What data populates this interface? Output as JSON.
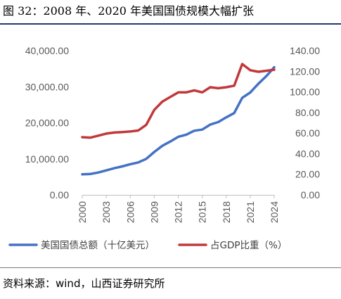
{
  "title": "图 32：2008 年、2020 年美国国债规模大幅扩张",
  "source": "资料来源：wind，山西证券研究所",
  "chart_data": {
    "type": "line",
    "title": "",
    "xlabel": "",
    "ylabel": "",
    "x_ticks": [
      "2000",
      "2003",
      "2006",
      "2009",
      "2012",
      "2015",
      "2018",
      "2021",
      "2024"
    ],
    "y_left_ticks": [
      "0.00",
      "10,000.00",
      "20,000.00",
      "30,000.00",
      "40,000.00"
    ],
    "y_right_ticks": [
      "0.00",
      "20.00",
      "40.00",
      "60.00",
      "80.00",
      "100.00",
      "120.00",
      "140.00"
    ],
    "ylim_left": [
      0,
      40000
    ],
    "ylim_right": [
      0,
      140
    ],
    "xlim": [
      2000,
      2024
    ],
    "grid": false,
    "legend_position": "bottom",
    "series": [
      {
        "name": "美国国债总额（十亿美元）",
        "axis": "left",
        "color": "#4472c4",
        "x": [
          2000,
          2001,
          2002,
          2003,
          2004,
          2005,
          2006,
          2007,
          2008,
          2009,
          2010,
          2011,
          2012,
          2013,
          2014,
          2015,
          2016,
          2017,
          2018,
          2019,
          2020,
          2021,
          2022,
          2023,
          2024
        ],
        "values": [
          5700,
          5800,
          6200,
          6800,
          7400,
          7900,
          8500,
          9000,
          10000,
          11900,
          13600,
          14800,
          16100,
          16700,
          17800,
          18100,
          19500,
          20200,
          21500,
          22700,
          26900,
          28400,
          30800,
          32900,
          35400
        ]
      },
      {
        "name": "占GDP比重（%）",
        "axis": "right",
        "color": "#c0393b",
        "x": [
          2000,
          2001,
          2002,
          2003,
          2004,
          2005,
          2006,
          2007,
          2008,
          2009,
          2010,
          2011,
          2012,
          2013,
          2014,
          2015,
          2016,
          2017,
          2018,
          2019,
          2020,
          2021,
          2022,
          2023,
          2024
        ],
        "values": [
          56,
          55.5,
          57.5,
          59.5,
          60.5,
          61,
          61.5,
          62.5,
          68,
          82.5,
          90.5,
          95,
          99.5,
          99.5,
          101.5,
          99.5,
          104.5,
          103.5,
          104.5,
          106,
          127,
          121,
          119.5,
          120.5,
          121.5
        ]
      }
    ]
  }
}
